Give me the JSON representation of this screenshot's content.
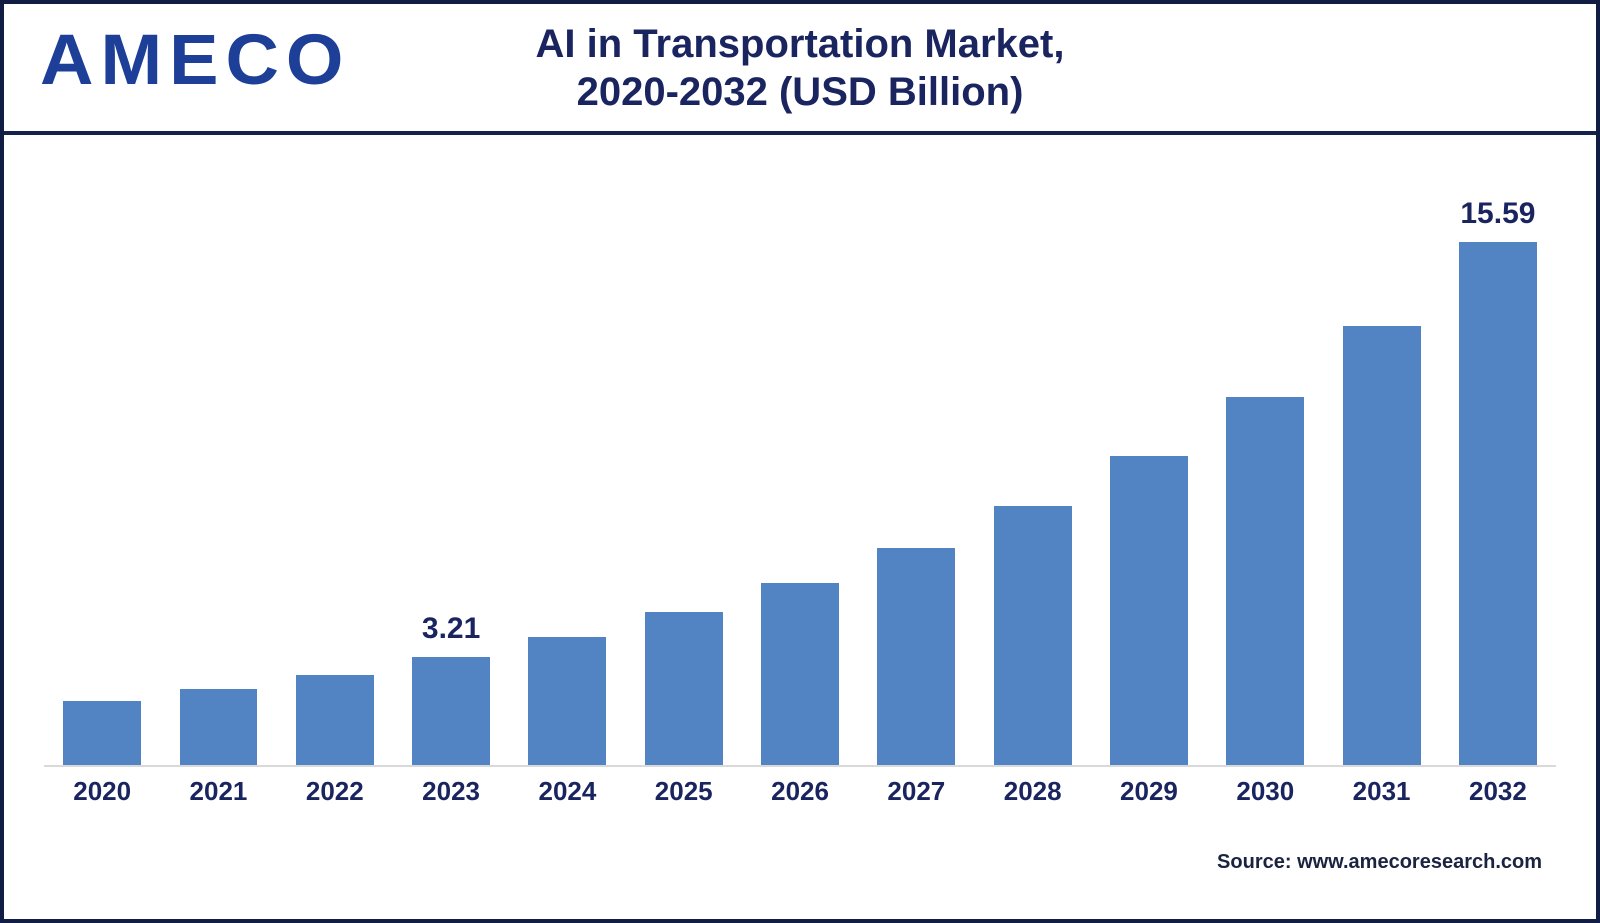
{
  "page": {
    "background_color": "#ffffff",
    "frame_border_color": "#111d45"
  },
  "header": {
    "logo_text": "AMECO",
    "logo_color": "#1d3f97",
    "title_line1": "AI in Transportation Market,",
    "title_line2": "2020-2032 (USD Billion)",
    "title_color": "#1a2560"
  },
  "chart_data": {
    "type": "bar",
    "title": "AI in Transportation Market, 2020-2032 (USD Billion)",
    "categories": [
      "2020",
      "2021",
      "2022",
      "2023",
      "2024",
      "2025",
      "2026",
      "2027",
      "2028",
      "2029",
      "2030",
      "2031",
      "2032"
    ],
    "values": [
      1.9,
      2.26,
      2.69,
      3.21,
      3.83,
      4.56,
      5.44,
      6.48,
      7.73,
      9.21,
      10.98,
      13.08,
      15.59
    ],
    "value_labels": {
      "2023": "3.21",
      "2032": "15.59"
    },
    "bar_color": "#5284c4",
    "label_color": "#1a2560",
    "axis_line_color": "#d9d9d9",
    "y_axis_visible": false,
    "grid": false,
    "legend": false,
    "ylim": [
      0,
      15.59
    ]
  },
  "footer": {
    "source_text": "Source: www.amecoresearch.com"
  }
}
